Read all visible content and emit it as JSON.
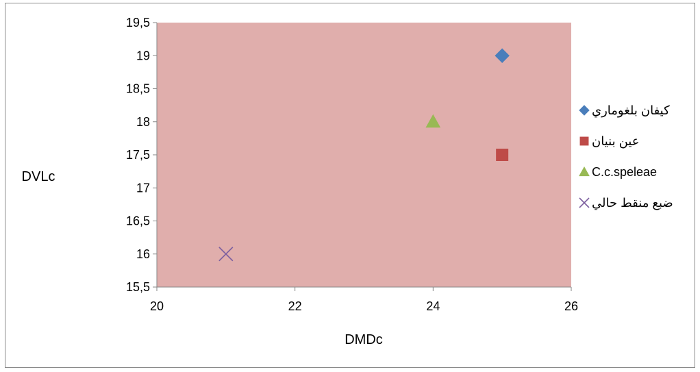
{
  "chart_data": {
    "type": "scatter",
    "title": "",
    "xlabel": "DMDc",
    "ylabel": "DVLc",
    "xlim": [
      20,
      26
    ],
    "ylim": [
      15.5,
      19.5
    ],
    "x_ticks": [
      "20",
      "22",
      "24",
      "26"
    ],
    "y_ticks": [
      "15,5",
      "16",
      "16,5",
      "17",
      "17,5",
      "18",
      "18,5",
      "19",
      "19,5"
    ],
    "grid": false,
    "legend_position": "right",
    "plot_background": "#e0aeac",
    "series": [
      {
        "name": "كيفان بلغوماري",
        "marker": "diamond",
        "color": "#4a7ebb",
        "points": [
          {
            "x": 25,
            "y": 19
          }
        ]
      },
      {
        "name": "عين بنيان",
        "marker": "square",
        "color": "#be4b48",
        "points": [
          {
            "x": 25,
            "y": 17.5
          }
        ]
      },
      {
        "name": "C.c.speleae",
        "marker": "triangle",
        "color": "#98b954",
        "points": [
          {
            "x": 24,
            "y": 18
          }
        ]
      },
      {
        "name": "ضبع منقط حالي",
        "marker": "x",
        "color": "#7d60a0",
        "points": [
          {
            "x": 21,
            "y": 16
          }
        ]
      }
    ]
  }
}
